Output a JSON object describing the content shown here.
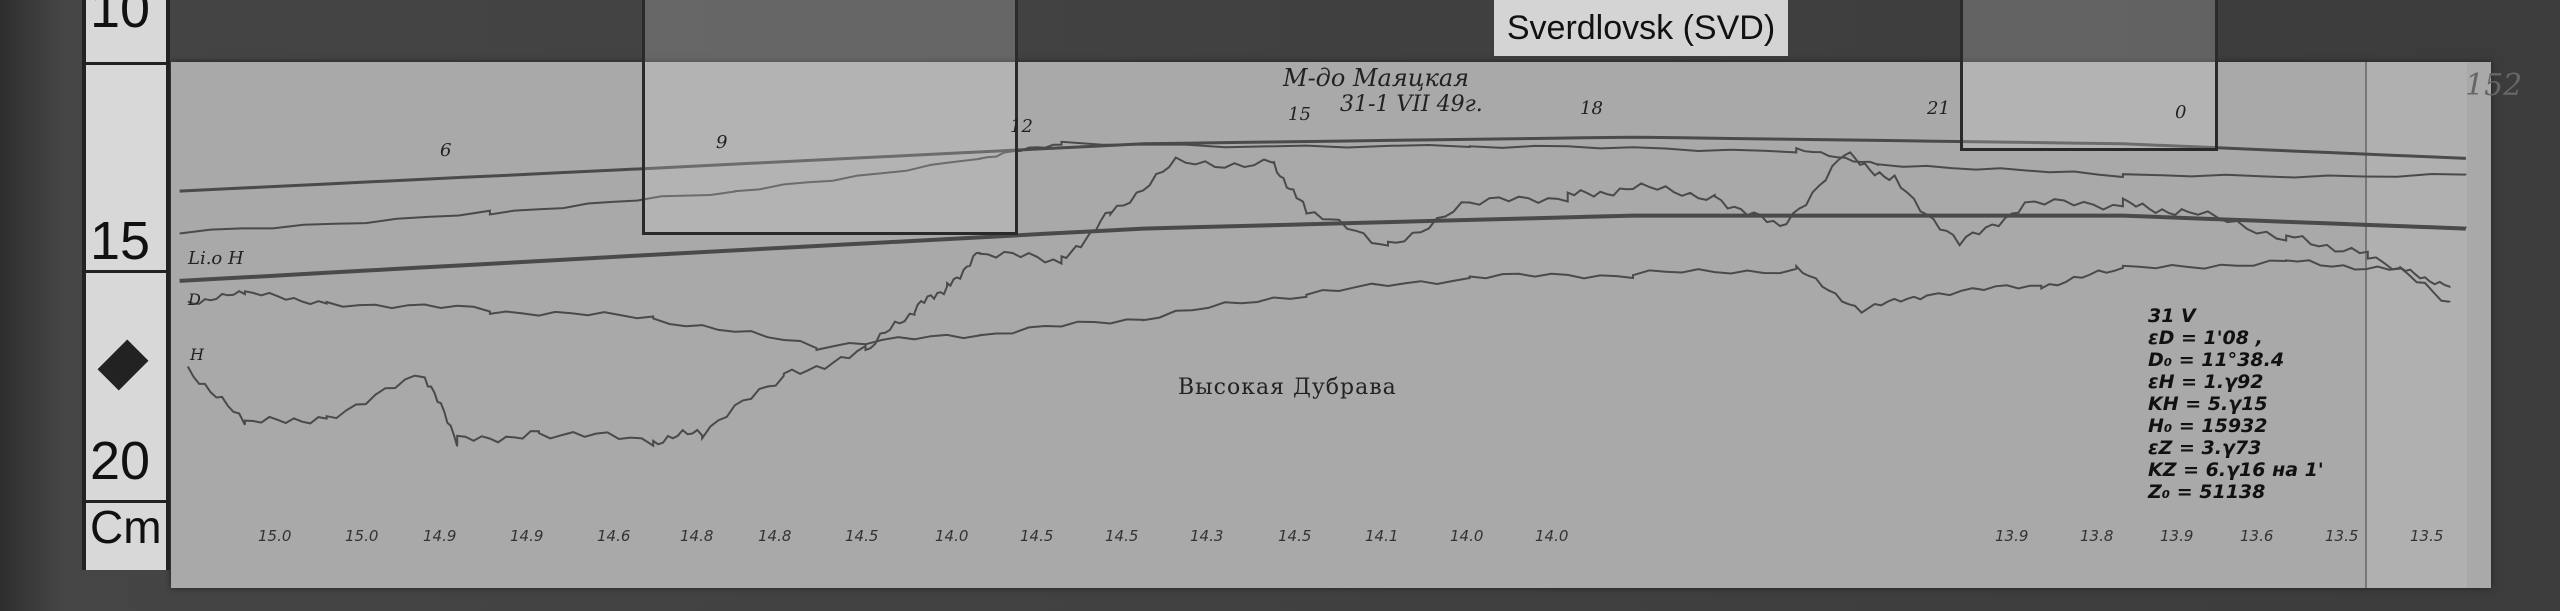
{
  "station_label": "Sverdlovsk (SVD)",
  "ruler": {
    "numbers": [
      "10",
      "15",
      "20"
    ],
    "unit": "Cm"
  },
  "magnetogram": {
    "header_line1": "М-до Маяцкая",
    "header_line2": "31-1 VII 49г.",
    "hour_marks": [
      "6",
      "9",
      "12",
      "15",
      "18",
      "21",
      "0"
    ],
    "trace_labels": {
      "d": "D",
      "z": "H",
      "h": "H",
      "baseline": "Li.o H"
    },
    "station_text": "Высокая Дубрава",
    "page_number": "152",
    "scale_values": [
      "15.0",
      "15.0",
      "14.9",
      "14.9",
      "14.6",
      "14.8",
      "14.8",
      "14.5",
      "14.0",
      "14.5",
      "14.5",
      "14.3",
      "14.5",
      "14.1",
      "14.0",
      "14.0",
      "13.9",
      "13.8",
      "13.9",
      "13.6",
      "13.5",
      "13.5"
    ],
    "constants": [
      "31 V",
      "εD = 1'08 ,",
      "D₀ = 11°38.4",
      "εH = 1.γ92",
      "KH = 5.γ15",
      "H₀ = 15932",
      "εZ = 3.γ73",
      "KZ = 6.γ16 на 1'",
      "Z₀ = 51138"
    ]
  },
  "colors": {
    "paper": "#a9a9a9",
    "trace": "#4a4a4a",
    "background": "#3a3a3a"
  }
}
